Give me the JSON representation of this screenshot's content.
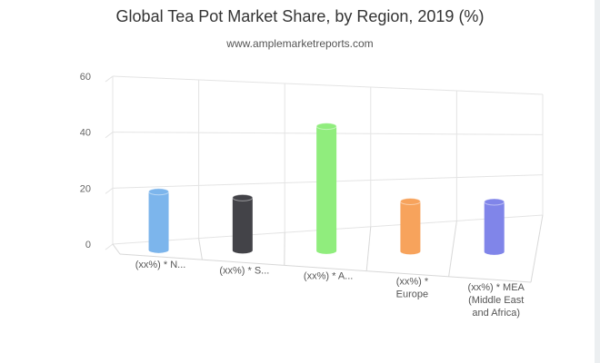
{
  "colors": {
    "north_america": "#7cb5ec",
    "south_america": "#434348",
    "asia": "#90ed7d",
    "europe": "#f7a35c",
    "mea": "#8085e9",
    "grid": "#e4e4e4",
    "text": "#333333"
  },
  "chart_data": {
    "type": "bar",
    "title": "Global Tea Pot Market Share, by Region, 2019 (%)",
    "subtitle": "www.amplemarketreports.com",
    "xlabel": "",
    "ylabel": "",
    "ylim": [
      0,
      60
    ],
    "y_ticks": [
      "0",
      "20",
      "40",
      "60"
    ],
    "grid": true,
    "legend": "none",
    "render": "3d-cylinder",
    "categories": [
      [
        "(xx%) * N..."
      ],
      [
        "(xx%) * S..."
      ],
      [
        "(xx%) * A..."
      ],
      [
        "(xx%) *",
        "Europe"
      ],
      [
        "(xx%) * MEA",
        "(Middle East",
        "and Africa)"
      ]
    ],
    "values": [
      21,
      19,
      45,
      18,
      18
    ]
  }
}
